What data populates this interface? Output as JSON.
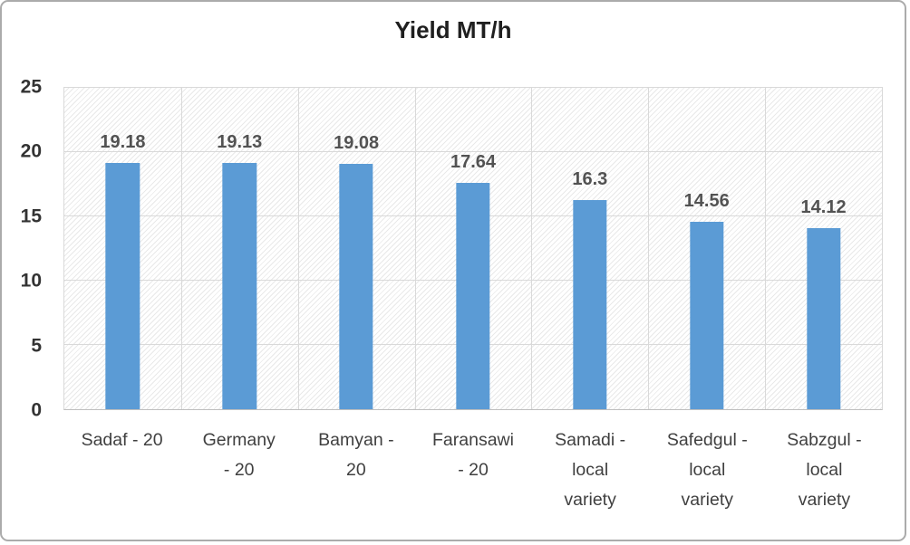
{
  "chart_data": {
    "type": "bar",
    "title": "Yield MT/h",
    "xlabel": "",
    "ylabel": "",
    "categories": [
      "Sadaf - 20",
      "Germany - 20",
      "Bamyan - 20",
      "Faransawi - 20",
      "Samadi - local variety",
      "Safedgul - local variety",
      "Sabzgul - local variety"
    ],
    "category_lines": [
      [
        "Sadaf - 20"
      ],
      [
        "Germany",
        "- 20"
      ],
      [
        "Bamyan -",
        "20"
      ],
      [
        "Faransawi",
        "- 20"
      ],
      [
        "Samadi -",
        "local",
        "variety"
      ],
      [
        "Safedgul -",
        "local",
        "variety"
      ],
      [
        "Sabzgul -",
        "local",
        "variety"
      ]
    ],
    "values": [
      19.18,
      19.13,
      19.08,
      17.64,
      16.3,
      14.56,
      14.12
    ],
    "value_labels": [
      "19.18",
      "19.13",
      "19.08",
      "17.64",
      "16.3",
      "14.56",
      "14.12"
    ],
    "ylim": [
      0,
      25
    ],
    "yticks": [
      0,
      5,
      10,
      15,
      20,
      25
    ],
    "grid": true,
    "legend": false,
    "plot_background": "diagonal-hatch",
    "colors": {
      "bar": "#5B9BD5",
      "value_label": "#525252",
      "tick_label": "#333333",
      "cat_label": "#404040",
      "title": "#1f1f1f",
      "gridline": "#D9D9D9",
      "plot_border": "#D9D9D9",
      "axis_line": "#BFBFBF",
      "hatch": "#E9E9E9",
      "frame_border": "#ABABAB"
    }
  }
}
